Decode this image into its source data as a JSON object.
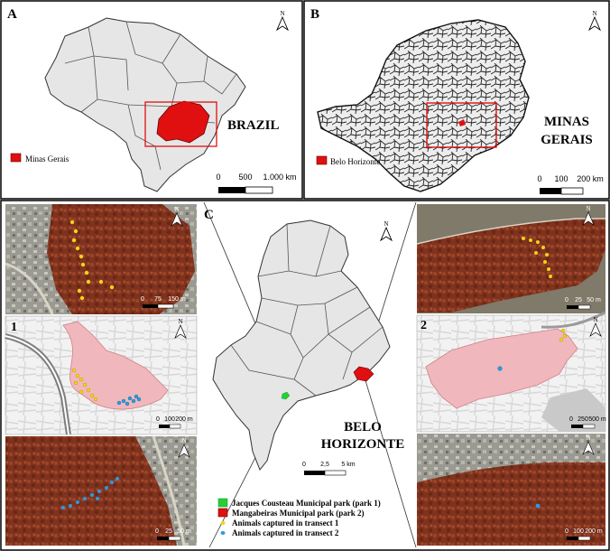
{
  "panels": {
    "A": {
      "label": "A",
      "title": "BRAZIL",
      "legend": "Minas Gerais",
      "scale": {
        "ticks": [
          "0",
          "500",
          "1.000 km"
        ]
      }
    },
    "B": {
      "label": "B",
      "title_line1": "MINAS",
      "title_line2": "GERAIS",
      "legend": "Belo Horizonte",
      "scale": {
        "ticks": [
          "0",
          "100",
          "200 km"
        ]
      }
    },
    "C": {
      "label": "C",
      "title_line1": "BELO",
      "title_line2": "HORIZONTE",
      "scale": {
        "ticks": [
          "0",
          "2,5",
          "5 km"
        ]
      }
    }
  },
  "north_label": "N",
  "insets": {
    "left_top_scale": [
      "0",
      "75",
      "150 m"
    ],
    "left_mid_label": "1",
    "left_mid_scale": [
      "0",
      "100",
      "200 m"
    ],
    "left_bottom_scale": [
      "0",
      "25",
      "50 m"
    ],
    "right_top_scale": [
      "0",
      "25",
      "50 m"
    ],
    "right_mid_label": "2",
    "right_mid_scale": [
      "0",
      "250",
      "500 m"
    ],
    "right_bottom_scale": [
      "0",
      "100",
      "200 m"
    ]
  },
  "legend": {
    "items": [
      {
        "label": "Jacques Cousteau Municipal park (park 1)",
        "color": "#2ecc2e",
        "kind": "square"
      },
      {
        "label": "Mangabeiras Municipal park (park 2)",
        "color": "#e01010",
        "kind": "square"
      },
      {
        "label": "Animals captured in transect 1",
        "color": "#f5d21a",
        "kind": "dot"
      },
      {
        "label": "Animals captured in transect 2",
        "color": "#2a9be0",
        "kind": "dot"
      }
    ]
  },
  "colors": {
    "region_fill": "#e6e6e6",
    "highlight_red": "#e01010",
    "park1_green": "#2ecc2e",
    "forest_red": "#8a3a22",
    "park_pink": "#f0b8bc",
    "transect1_yellow": "#f5d21a",
    "transect2_blue": "#2a9be0"
  }
}
